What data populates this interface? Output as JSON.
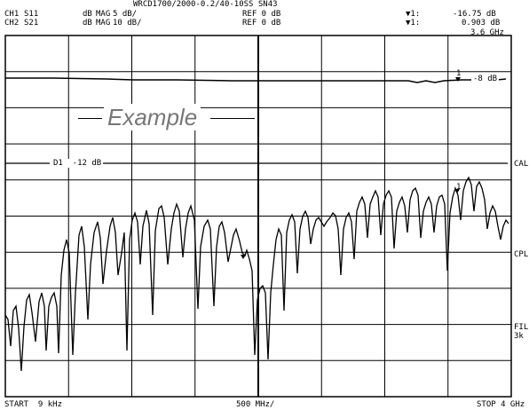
{
  "header": {
    "title": "WRCD1700/2000-0.2/40-10SS SN43",
    "ch1": {
      "channel": "CH1",
      "param": "S11",
      "unit": "dB",
      "format": "MAG",
      "scale": "5 dB/",
      "ref": "REF 0 dB"
    },
    "ch2": {
      "channel": "CH2",
      "param": "S21",
      "unit": "dB",
      "format": "MAG",
      "scale": "10 dB/",
      "ref": "REF 0 dB"
    },
    "marker1": {
      "label": "▼1:",
      "value": "-16.75 dB"
    },
    "marker2": {
      "label": "▼1:",
      "value": "0.903 dB"
    },
    "marker_freq": "3.6 GHz"
  },
  "screen": {
    "watermark": "Example",
    "limit_line_label": "D1  -12 dB",
    "marker_ref_label": "-8 dB",
    "marker_num_top": "1",
    "marker_num_bottom": "1"
  },
  "softkeys": {
    "cal": "CAL",
    "cpl": "CPL",
    "fil_line1": "FIL",
    "fil_line2": "3k"
  },
  "footer": {
    "start": "START  9 kHz",
    "center": "500 MHz/",
    "stop": "STOP 4 GHz"
  },
  "colors": {
    "trace": "#000000",
    "grid": "#000000",
    "background": "#ffffff"
  }
}
